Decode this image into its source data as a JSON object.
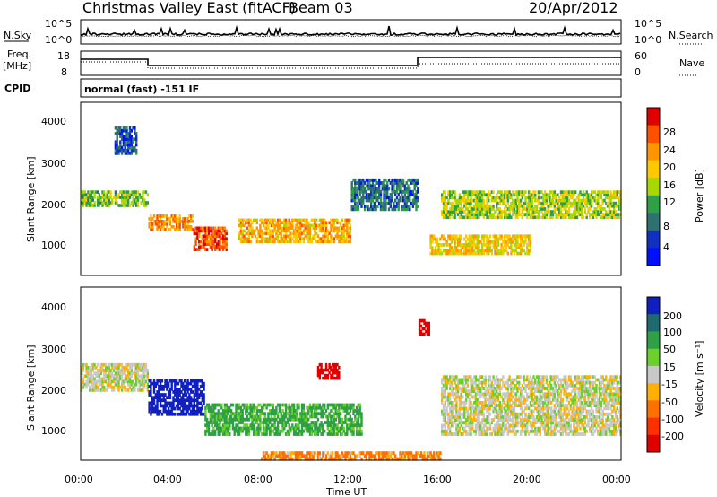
{
  "header": {
    "station": "Christmas Valley East (fitACF)",
    "beam": "Beam 03",
    "date": "20/Apr/2012"
  },
  "strips": {
    "nsky_label": "N.Sky",
    "nsky_ticks": [
      "10^5",
      "10^0"
    ],
    "nsearch_label": "N.Search",
    "nsearch_ticks": [
      "10^5",
      "10^0"
    ],
    "freq_label_1": "Freq.",
    "freq_label_2": "[MHz]",
    "freq_ticks": [
      "18",
      "8"
    ],
    "nave_label": "Nave",
    "nave_ticks": [
      "60",
      "0"
    ],
    "cpid_label": "CPID",
    "cpid_text": "normal (fast) -151 IF"
  },
  "panels": {
    "ylabel": "Slant Range [km]",
    "xlabel": "Time UT",
    "yticks": [
      "4000",
      "3000",
      "2000",
      "1000"
    ],
    "xticks": [
      "00:00",
      "04:00",
      "08:00",
      "12:00",
      "16:00",
      "20:00",
      "00:00"
    ]
  },
  "power_scale": {
    "label": "Power [dB]",
    "ticks": [
      "28",
      "24",
      "20",
      "16",
      "12",
      "8",
      "4"
    ],
    "colors": [
      "#e00000",
      "#ff5000",
      "#ff9600",
      "#ffc800",
      "#a8d800",
      "#2fa045",
      "#2f7070",
      "#1030c0",
      "#0010ff"
    ]
  },
  "velocity_scale": {
    "label": "Velocity [m s⁻¹]",
    "ticks": [
      "200",
      "100",
      "50",
      "15",
      "-15",
      "-50",
      "-100",
      "-200"
    ],
    "colors": [
      "#1020c0",
      "#1f6a70",
      "#2fa045",
      "#6ad02a",
      "#c8c8c8",
      "#ffb000",
      "#ff7000",
      "#ff3000",
      "#e00000"
    ]
  },
  "chart_data": [
    {
      "type": "heatmap",
      "title": "Power",
      "xlabel": "Time UT",
      "ylabel": "Slant Range [km]",
      "x_range": [
        "00:00",
        "24:00"
      ],
      "ylim": [
        180,
        4500
      ],
      "colorbar": {
        "label": "Power [dB]",
        "range": [
          0,
          30
        ]
      },
      "features": [
        {
          "time": [
            "00:00",
            "03:00"
          ],
          "range_km": [
            1900,
            2300
          ],
          "power_db": 12
        },
        {
          "time": [
            "01:30",
            "02:30"
          ],
          "range_km": [
            3200,
            3900
          ],
          "power_db": 4
        },
        {
          "time": [
            "03:00",
            "05:00"
          ],
          "range_km": [
            1300,
            1700
          ],
          "power_db": 22
        },
        {
          "time": [
            "05:00",
            "06:30"
          ],
          "range_km": [
            800,
            1400
          ],
          "power_db": 26
        },
        {
          "time": [
            "07:00",
            "12:00"
          ],
          "range_km": [
            1000,
            1600
          ],
          "power_db": 20
        },
        {
          "time": [
            "12:00",
            "15:00"
          ],
          "range_km": [
            1800,
            2600
          ],
          "power_db": 6
        },
        {
          "time": [
            "15:30",
            "20:00"
          ],
          "range_km": [
            700,
            1200
          ],
          "power_db": 18
        },
        {
          "time": [
            "16:00",
            "24:00"
          ],
          "range_km": [
            1600,
            2300
          ],
          "power_db": 14
        }
      ]
    },
    {
      "type": "heatmap",
      "title": "Velocity",
      "xlabel": "Time UT",
      "ylabel": "Slant Range [km]",
      "x_range": [
        "00:00",
        "24:00"
      ],
      "ylim": [
        180,
        4500
      ],
      "colorbar": {
        "label": "Velocity [m s-1]",
        "range": [
          -200,
          200
        ]
      },
      "features": [
        {
          "time": [
            "00:00",
            "03:00"
          ],
          "range_km": [
            1900,
            2600
          ],
          "velocity": 0
        },
        {
          "time": [
            "03:00",
            "05:30"
          ],
          "range_km": [
            1300,
            2200
          ],
          "velocity": 180
        },
        {
          "time": [
            "05:30",
            "12:30"
          ],
          "range_km": [
            800,
            1600
          ],
          "velocity": 45
        },
        {
          "time": [
            "10:30",
            "11:30"
          ],
          "range_km": [
            2200,
            2600
          ],
          "velocity": -200
        },
        {
          "time": [
            "15:00",
            "15:30"
          ],
          "range_km": [
            3300,
            3700
          ],
          "velocity": -200
        },
        {
          "time": [
            "16:00",
            "24:00"
          ],
          "range_km": [
            800,
            2300
          ],
          "velocity": 0
        },
        {
          "time": [
            "08:00",
            "16:00"
          ],
          "range_km": [
            180,
            400
          ],
          "velocity": -40
        }
      ]
    }
  ]
}
